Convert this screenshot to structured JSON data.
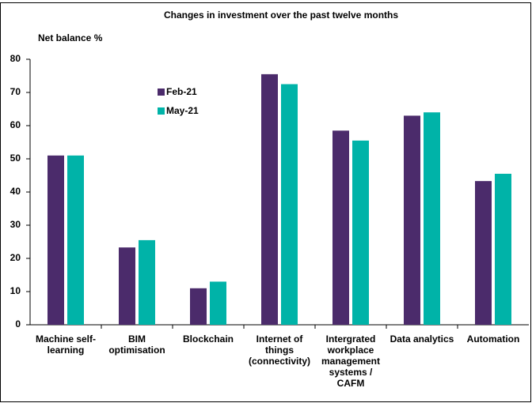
{
  "chart_data": {
    "type": "bar",
    "title": "Changes in investment over the past twelve months",
    "y_label": "Net balance %",
    "categories": [
      "Machine self-learning",
      "BIM optimisation",
      "Blockchain",
      "Internet of things (connectivity)",
      "Intergrated workplace management systems / CAFM",
      "Data analytics",
      "Automation"
    ],
    "series": [
      {
        "name": "Feb-21",
        "color": "#4b2b6b",
        "values": [
          51,
          23.3,
          11,
          75.5,
          58.5,
          63,
          43.3
        ]
      },
      {
        "name": "May-21",
        "color": "#00b3a8",
        "values": [
          51,
          25.5,
          13,
          72.5,
          55.5,
          64,
          45.5
        ]
      }
    ],
    "ylim": [
      0,
      80
    ],
    "yticks": [
      0,
      10,
      20,
      30,
      40,
      50,
      60,
      70,
      80
    ],
    "grid": false
  }
}
